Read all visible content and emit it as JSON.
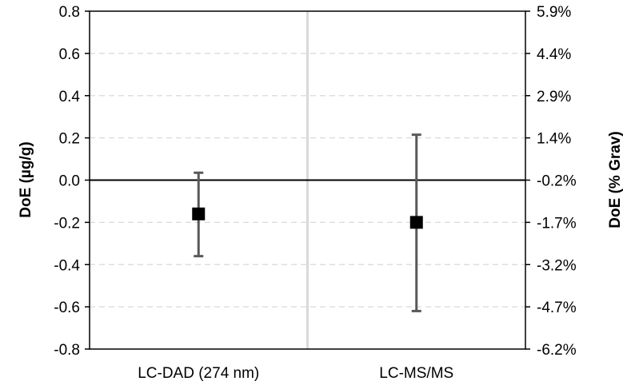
{
  "chart_data": {
    "type": "scatter",
    "categories": [
      "LC-DAD (274 nm)",
      "LC-MS/MS"
    ],
    "series": [
      {
        "points": [
          {
            "category": "LC-DAD (274 nm)",
            "y": -0.16,
            "err_low": -0.36,
            "err_high": 0.035
          },
          {
            "category": "LC-MS/MS",
            "y": -0.2,
            "err_low": -0.62,
            "err_high": 0.215
          }
        ]
      }
    ],
    "ylabel_left": "DoE (µg/g)",
    "ylabel_right": "DoE (% Grav)",
    "ylim": [
      -0.8,
      0.8
    ],
    "left_ticks": [
      "-0.8",
      "-0.6",
      "-0.4",
      "-0.2",
      "0.0",
      "0.2",
      "0.4",
      "0.6",
      "0.8"
    ],
    "right_ticks": [
      "-6.2%",
      "-4.7%",
      "-3.2%",
      "-1.7%",
      "-0.2%",
      "1.4%",
      "2.9%",
      "4.4%",
      "5.9%"
    ],
    "grid": true,
    "zero_line": true,
    "category_divider": true
  },
  "colors": {
    "marker": "#000000",
    "errorbar": "#595959",
    "grid": "#d9d9d9",
    "divider": "#d9d9d9",
    "axis": "#000000"
  }
}
